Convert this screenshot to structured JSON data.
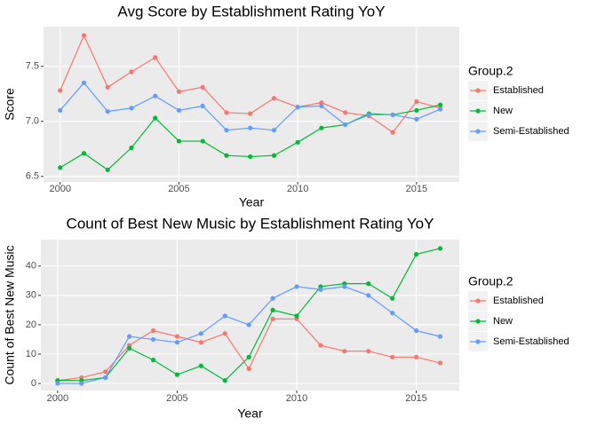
{
  "chart_data": [
    {
      "type": "line",
      "title": "Avg Score by Establishment Rating YoY",
      "x_label": "Year",
      "y_label": "Score",
      "legend_title": "Group.2",
      "legend": "right",
      "grid": true,
      "x": [
        2000,
        2001,
        2002,
        2003,
        2004,
        2005,
        2006,
        2007,
        2008,
        2009,
        2010,
        2011,
        2012,
        2013,
        2014,
        2015,
        2016
      ],
      "xlim": [
        1999.3,
        2016.8
      ],
      "xticks": [
        2000,
        2005,
        2010,
        2015
      ],
      "ylim": [
        6.45,
        7.86
      ],
      "yticks": [
        6.5,
        {
          "value": 7,
          "label": "7.0"
        },
        7.5
      ],
      "series": [
        {
          "name": "Established",
          "color": "#f8766d",
          "values": [
            7.28,
            7.78,
            7.31,
            7.45,
            7.58,
            7.27,
            7.31,
            7.08,
            7.07,
            7.21,
            7.13,
            7.17,
            7.08,
            7.05,
            6.9,
            7.18,
            7.12
          ]
        },
        {
          "name": "New",
          "color": "#00ba38",
          "values": [
            6.58,
            6.71,
            6.56,
            6.76,
            7.03,
            6.82,
            6.82,
            6.69,
            6.68,
            6.69,
            6.81,
            6.94,
            6.97,
            7.07,
            7.06,
            7.1,
            7.15
          ]
        },
        {
          "name": "Semi-Established",
          "color": "#619cff",
          "values": [
            7.1,
            7.35,
            7.09,
            7.12,
            7.23,
            7.1,
            7.14,
            6.92,
            6.94,
            6.92,
            7.13,
            7.14,
            6.97,
            7.06,
            7.06,
            7.02,
            7.11
          ]
        }
      ]
    },
    {
      "type": "line",
      "title": "Count of Best New Music by Establishment Rating YoY",
      "x_label": "Year",
      "y_label": "Count of Best New Music",
      "legend_title": "Group.2",
      "legend": "right",
      "grid": true,
      "x": [
        2000,
        2001,
        2002,
        2003,
        2004,
        2005,
        2006,
        2007,
        2008,
        2009,
        2010,
        2011,
        2012,
        2013,
        2014,
        2015,
        2016
      ],
      "xlim": [
        1999.3,
        2016.8
      ],
      "xticks": [
        2000,
        2005,
        2010,
        2015
      ],
      "ylim": [
        -2.4,
        49
      ],
      "yticks": [
        0,
        10,
        20,
        30,
        40
      ],
      "series": [
        {
          "name": "Established",
          "color": "#f8766d",
          "values": [
            1,
            2,
            4,
            13,
            18,
            16,
            14,
            17,
            5,
            22,
            22,
            13,
            11,
            11,
            9,
            9,
            7
          ]
        },
        {
          "name": "New",
          "color": "#00ba38",
          "values": [
            1,
            1,
            2,
            12,
            8,
            3,
            6,
            1,
            9,
            25,
            23,
            33,
            34,
            34,
            29,
            44,
            46
          ]
        },
        {
          "name": "Semi-Established",
          "color": "#619cff",
          "values": [
            0,
            0,
            2,
            16,
            15,
            14,
            17,
            23,
            20,
            29,
            33,
            32,
            33,
            30,
            24,
            18,
            16
          ]
        }
      ]
    }
  ]
}
